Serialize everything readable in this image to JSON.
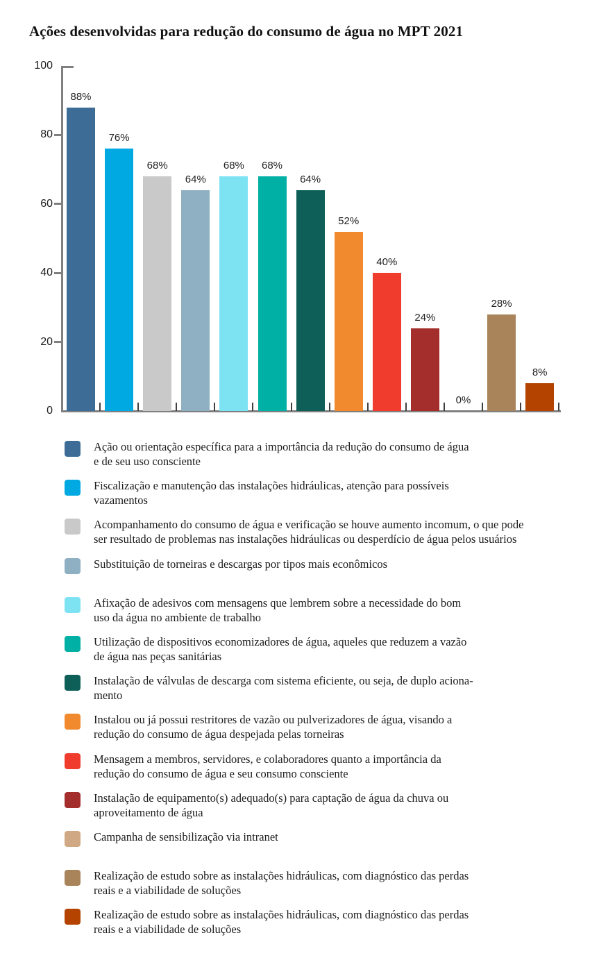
{
  "page_title": "Ações desenvolvidas para redução do consumo de água no MPT 2021",
  "chart_data": {
    "type": "bar",
    "title": "Ações desenvolvidas para redução do consumo de água no MPT 2021",
    "xlabel": "",
    "ylabel": "",
    "ylim": [
      0,
      100
    ],
    "yticks": [
      100,
      80,
      60,
      40,
      20,
      0
    ],
    "ytick_labels": [
      "100",
      "80",
      "60",
      "40",
      "20",
      "0"
    ],
    "grid": false,
    "legend_position": "bottom",
    "categories": [
      "Ação ou orientação específica para a importância da redução do consumo de água e de seu uso consciente",
      "Fiscalização e manutenção das instalações hidráulicas, atenção para possíveis vazamentos",
      "Acompanhamento do consumo de água e verificação se houve aumento incomum, o que pode ser resultado de problemas nas instalações hidráulicas ou desperdício de água pelos usuários",
      "Substituição de torneiras e descargas por tipos mais econômicos",
      "Afixação de adesivos com mensagens que lembrem sobre a necessidade do bom uso da água no ambiente de trabalho",
      "Utilização de dispositivos economizadores de água, aqueles que reduzem a vazão de água nas peças sanitárias",
      "Instalação de válvulas de descarga com sistema eficiente, ou seja, de duplo acionamento",
      "Instalou ou já possui restritores de vazão ou pulverizadores de água, visando a redução do consumo de água despejada pelas torneiras",
      "Mensagem a membros, servidores, e colaboradores quanto a importância da redução do consumo de água e seu consumo consciente",
      "Instalação de equipamento(s) adequado(s) para captação de água da chuva ou aproveitamento de água",
      "Campanha de sensibilização via intranet",
      "Realização de estudo sobre as instalações hidráulicas, com diagnóstico das perdas reais e a viabilidade de soluções",
      "Realização de estudo sobre as instalações hidráulicas, com diagnóstico das perdas reais e a viabilidade de soluções"
    ],
    "values": [
      88,
      76,
      68,
      64,
      68,
      68,
      64,
      52,
      40,
      24,
      0,
      28,
      8
    ],
    "bar_labels": [
      "88%",
      "76%",
      "68%",
      "64%",
      "68%",
      "68%",
      "64%",
      "52%",
      "40%",
      "24%",
      "0%",
      "28%",
      "8%"
    ],
    "colors": [
      "#3D6D96",
      "#00A9E2",
      "#C9C9C9",
      "#8FAFC2",
      "#7DE3F3",
      "#00B0A4",
      "#0D5F57",
      "#F18A2E",
      "#F03C2D",
      "#A32E2C",
      "#D0A883",
      "#A9845B",
      "#B44300"
    ]
  },
  "legend": {
    "items": [
      {
        "color": "#3D6D96",
        "label": "Ação ou orientação específica para a importância da redução do consumo de água\ne de seu uso consciente"
      },
      {
        "color": "#00A9E2",
        "label": "Fiscalização e manutenção das instalações hidráulicas, atenção para possíveis\nvazamentos"
      },
      {
        "color": "#C9C9C9",
        "label": "Acompanhamento do consumo de água e verificação se houve aumento incomum, o que pode\nser resultado de problemas nas instalações hidráulicas ou desperdício de água pelos usuários"
      },
      {
        "color": "#8FAFC2",
        "label": "Substituição de torneiras e descargas por tipos mais econômicos"
      },
      {
        "color": "#7DE3F3",
        "label": "Afixação de adesivos com mensagens que lembrem sobre a necessidade do bom\nuso da água no ambiente de trabalho"
      },
      {
        "color": "#00B0A4",
        "label": "Utilização de dispositivos economizadores de água, aqueles que reduzem a vazão\nde água nas peças sanitárias"
      },
      {
        "color": "#0D5F57",
        "label": "Instalação de válvulas de descarga com sistema eficiente, ou seja, de duplo aciona-\nmento"
      },
      {
        "color": "#F18A2E",
        "label": "Instalou ou já possui restritores de vazão ou pulverizadores de água, visando a\nredução do consumo de água despejada pelas torneiras"
      },
      {
        "color": "#F03C2D",
        "label": "Mensagem a membros, servidores, e colaboradores quanto a importância da\nredução do consumo de água e seu consumo consciente"
      },
      {
        "color": "#A32E2C",
        "label": "Instalação de equipamento(s) adequado(s) para captação de água da chuva ou\naproveitamento de água"
      },
      {
        "color": "#D0A883",
        "label": "Campanha de sensibilização via intranet"
      },
      {
        "color": "#A9845B",
        "label": "Realização de estudo sobre as instalações hidráulicas, com diagnóstico das perdas\nreais e a viabilidade de soluções"
      },
      {
        "color": "#B44300",
        "label": "Realização de estudo sobre as instalações hidráulicas, com diagnóstico das perdas\nreais e a viabilidade de soluções"
      }
    ]
  }
}
